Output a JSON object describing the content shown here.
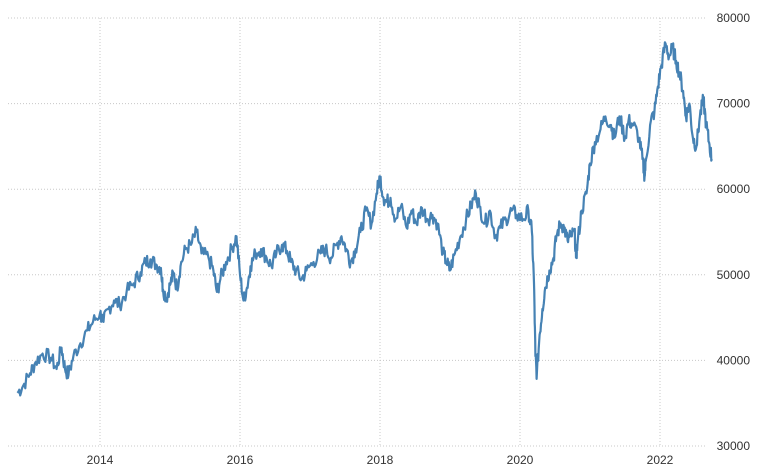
{
  "chart_data": {
    "type": "line",
    "title": "",
    "xlabel": "",
    "ylabel": "",
    "grid": true,
    "x_ticks": [
      "2014",
      "2016",
      "2018",
      "2020",
      "2022"
    ],
    "y_ticks": [
      "30000",
      "40000",
      "50000",
      "60000",
      "70000",
      "80000"
    ],
    "xlim": [
      2012.8,
      2022.75
    ],
    "ylim": [
      30000,
      80000
    ],
    "series": [
      {
        "color": "#4682b4",
        "points": [
          [
            2012.82,
            36200
          ],
          [
            2012.9,
            37000
          ],
          [
            2013.0,
            38500
          ],
          [
            2013.08,
            39800
          ],
          [
            2013.18,
            40800
          ],
          [
            2013.3,
            40300
          ],
          [
            2013.38,
            39000
          ],
          [
            2013.45,
            41500
          ],
          [
            2013.5,
            39000
          ],
          [
            2013.55,
            38300
          ],
          [
            2013.62,
            40500
          ],
          [
            2013.72,
            42000
          ],
          [
            2013.82,
            43500
          ],
          [
            2013.9,
            44500
          ],
          [
            2014.0,
            45500
          ],
          [
            2014.05,
            44500
          ],
          [
            2014.12,
            46000
          ],
          [
            2014.2,
            47000
          ],
          [
            2014.28,
            46500
          ],
          [
            2014.38,
            48000
          ],
          [
            2014.48,
            49000
          ],
          [
            2014.58,
            50300
          ],
          [
            2014.65,
            51500
          ],
          [
            2014.72,
            51800
          ],
          [
            2014.8,
            51200
          ],
          [
            2014.87,
            50800
          ],
          [
            2014.9,
            48300
          ],
          [
            2014.95,
            47300
          ],
          [
            2015.0,
            48800
          ],
          [
            2015.05,
            50200
          ],
          [
            2015.1,
            48500
          ],
          [
            2015.15,
            51000
          ],
          [
            2015.22,
            53000
          ],
          [
            2015.3,
            53500
          ],
          [
            2015.38,
            55000
          ],
          [
            2015.45,
            52500
          ],
          [
            2015.55,
            52000
          ],
          [
            2015.62,
            50500
          ],
          [
            2015.67,
            48000
          ],
          [
            2015.72,
            49500
          ],
          [
            2015.8,
            51500
          ],
          [
            2015.88,
            53000
          ],
          [
            2015.95,
            54500
          ],
          [
            2016.0,
            50000
          ],
          [
            2016.05,
            47000
          ],
          [
            2016.1,
            48500
          ],
          [
            2016.15,
            51000
          ],
          [
            2016.22,
            52500
          ],
          [
            2016.3,
            53000
          ],
          [
            2016.38,
            52000
          ],
          [
            2016.45,
            51000
          ],
          [
            2016.52,
            52500
          ],
          [
            2016.6,
            53500
          ],
          [
            2016.67,
            52800
          ],
          [
            2016.73,
            51500
          ],
          [
            2016.8,
            50500
          ],
          [
            2016.88,
            49500
          ],
          [
            2016.95,
            50500
          ],
          [
            2017.05,
            51500
          ],
          [
            2017.15,
            52500
          ],
          [
            2017.22,
            53000
          ],
          [
            2017.3,
            52000
          ],
          [
            2017.38,
            53500
          ],
          [
            2017.45,
            54500
          ],
          [
            2017.52,
            53000
          ],
          [
            2017.58,
            51500
          ],
          [
            2017.65,
            53000
          ],
          [
            2017.72,
            55000
          ],
          [
            2017.8,
            57500
          ],
          [
            2017.88,
            56000
          ],
          [
            2017.95,
            59500
          ],
          [
            2018.0,
            61500
          ],
          [
            2018.05,
            59000
          ],
          [
            2018.1,
            58500
          ],
          [
            2018.15,
            59000
          ],
          [
            2018.22,
            56500
          ],
          [
            2018.3,
            58000
          ],
          [
            2018.38,
            55500
          ],
          [
            2018.45,
            57500
          ],
          [
            2018.52,
            56000
          ],
          [
            2018.6,
            57800
          ],
          [
            2018.68,
            56500
          ],
          [
            2018.75,
            57000
          ],
          [
            2018.82,
            56000
          ],
          [
            2018.9,
            52500
          ],
          [
            2018.95,
            51500
          ],
          [
            2019.0,
            50500
          ],
          [
            2019.07,
            52500
          ],
          [
            2019.15,
            54500
          ],
          [
            2019.23,
            56500
          ],
          [
            2019.3,
            58000
          ],
          [
            2019.37,
            59500
          ],
          [
            2019.42,
            58000
          ],
          [
            2019.5,
            56000
          ],
          [
            2019.57,
            57500
          ],
          [
            2019.65,
            54500
          ],
          [
            2019.72,
            55500
          ],
          [
            2019.8,
            56500
          ],
          [
            2019.88,
            57500
          ],
          [
            2019.95,
            57000
          ],
          [
            2020.05,
            56500
          ],
          [
            2020.12,
            57500
          ],
          [
            2020.17,
            55000
          ],
          [
            2020.2,
            49000
          ],
          [
            2020.22,
            40500
          ],
          [
            2020.24,
            38300
          ],
          [
            2020.28,
            43000
          ],
          [
            2020.32,
            46000
          ],
          [
            2020.36,
            48500
          ],
          [
            2020.42,
            50500
          ],
          [
            2020.48,
            52000
          ],
          [
            2020.52,
            54500
          ],
          [
            2020.58,
            56000
          ],
          [
            2020.63,
            55500
          ],
          [
            2020.68,
            54000
          ],
          [
            2020.72,
            54500
          ],
          [
            2020.78,
            55000
          ],
          [
            2020.8,
            52000
          ],
          [
            2020.82,
            53500
          ],
          [
            2020.88,
            57500
          ],
          [
            2020.95,
            59500
          ],
          [
            2021.0,
            63000
          ],
          [
            2021.07,
            65500
          ],
          [
            2021.15,
            67000
          ],
          [
            2021.22,
            68500
          ],
          [
            2021.3,
            67500
          ],
          [
            2021.35,
            66000
          ],
          [
            2021.42,
            68500
          ],
          [
            2021.5,
            66000
          ],
          [
            2021.55,
            68000
          ],
          [
            2021.62,
            67500
          ],
          [
            2021.7,
            66000
          ],
          [
            2021.75,
            63500
          ],
          [
            2021.78,
            61500
          ],
          [
            2021.8,
            63500
          ],
          [
            2021.87,
            68000
          ],
          [
            2021.92,
            69000
          ],
          [
            2021.97,
            72000
          ],
          [
            2022.02,
            74500
          ],
          [
            2022.08,
            77000
          ],
          [
            2022.13,
            75500
          ],
          [
            2022.18,
            76500
          ],
          [
            2022.23,
            75000
          ],
          [
            2022.28,
            73500
          ],
          [
            2022.33,
            71500
          ],
          [
            2022.37,
            68500
          ],
          [
            2022.42,
            70000
          ],
          [
            2022.47,
            66000
          ],
          [
            2022.52,
            65000
          ],
          [
            2022.57,
            68500
          ],
          [
            2022.62,
            70500
          ],
          [
            2022.66,
            67500
          ],
          [
            2022.7,
            65500
          ],
          [
            2022.74,
            63500
          ]
        ]
      }
    ]
  }
}
